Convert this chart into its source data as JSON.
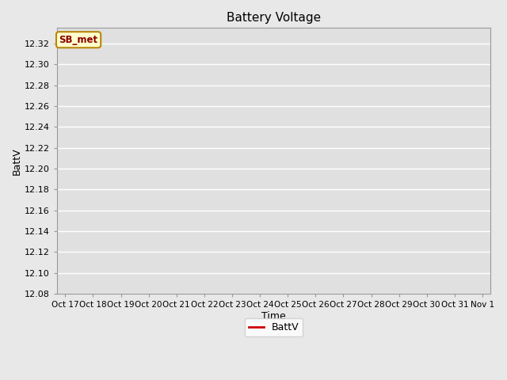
{
  "title": "Battery Voltage",
  "xlabel": "Time",
  "ylabel": "BattV",
  "ylim": [
    12.08,
    12.335
  ],
  "yticks": [
    12.08,
    12.1,
    12.12,
    12.14,
    12.16,
    12.18,
    12.2,
    12.22,
    12.24,
    12.26,
    12.28,
    12.3,
    12.32
  ],
  "line_color": "#cc0000",
  "line_width": 1.2,
  "fig_bg_color": "#e8e8e8",
  "plot_bg_color": "#e0e0e0",
  "legend_label": "BattV",
  "annotation_label": "SB_met",
  "x_tick_labels": [
    "Oct 17",
    "Oct 18",
    "Oct 19",
    "Oct 20",
    "Oct 21",
    "Oct 22",
    "Oct 23",
    "Oct 24",
    "Oct 25",
    "Oct 26",
    "Oct 27",
    "Oct 28",
    "Oct 29",
    "Oct 30",
    "Oct 31",
    "Nov 1"
  ],
  "grid_color": "#ffffff",
  "grid_lw": 1.0
}
